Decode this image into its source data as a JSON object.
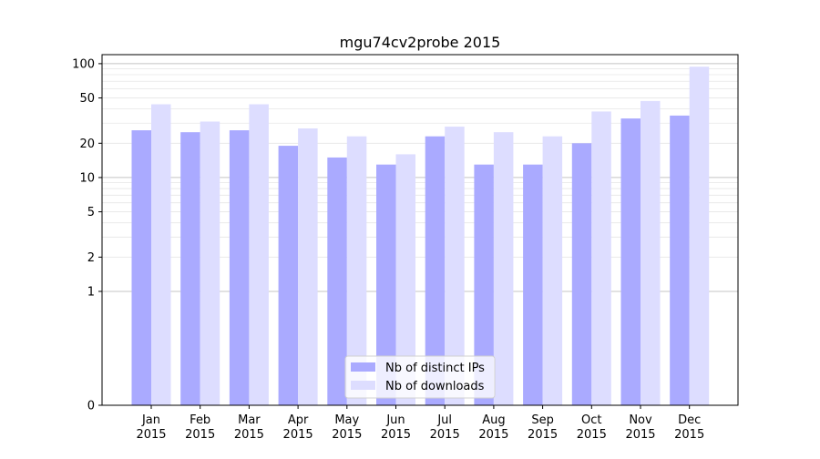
{
  "chart_data": {
    "type": "bar",
    "title": "mgu74cv2probe 2015",
    "xlabel": "",
    "ylabel": "",
    "y_scale": "symlog",
    "y_ticks": [
      0,
      1,
      2,
      5,
      10,
      20,
      50,
      100
    ],
    "ylim": [
      0,
      120
    ],
    "categories": [
      "Jan\n2015",
      "Feb\n2015",
      "Mar\n2015",
      "Apr\n2015",
      "May\n2015",
      "Jun\n2015",
      "Jul\n2015",
      "Aug\n2015",
      "Sep\n2015",
      "Oct\n2015",
      "Nov\n2015",
      "Dec\n2015"
    ],
    "series": [
      {
        "name": "Nb of distinct IPs",
        "color": "#aaaaff",
        "values": [
          26,
          25,
          26,
          19,
          15,
          13,
          23,
          13,
          13,
          20,
          33,
          35
        ]
      },
      {
        "name": "Nb of downloads",
        "color": "#ddddff",
        "values": [
          44,
          31,
          44,
          27,
          23,
          16,
          28,
          25,
          23,
          38,
          47,
          94
        ]
      }
    ],
    "grid": true,
    "legend_position": "lower center"
  }
}
